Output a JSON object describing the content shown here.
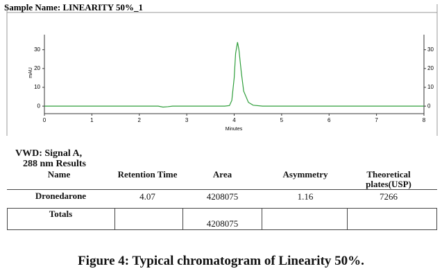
{
  "chart_data": {
    "type": "line",
    "title": "Sample Name: LINEARITY 50%_1",
    "x_label": "Minutes",
    "y_label": "mAU",
    "x": [
      0,
      0.5,
      1,
      1.5,
      2,
      2.4,
      2.5,
      2.6,
      2.7,
      3,
      3.5,
      3.8,
      3.9,
      3.95,
      4.0,
      4.03,
      4.07,
      4.1,
      4.15,
      4.2,
      4.3,
      4.4,
      4.6,
      5,
      6,
      7,
      8
    ],
    "series": [
      {
        "color": "#2e9e3a",
        "values": [
          0,
          0,
          0,
          0,
          0,
          0,
          -0.5,
          -0.3,
          0,
          0,
          0,
          0,
          0.3,
          3,
          15,
          28,
          34,
          30,
          18,
          8,
          2,
          0.5,
          0,
          0,
          0,
          0,
          0
        ]
      }
    ],
    "xlim": [
      0,
      8
    ],
    "xticks": [
      0,
      1,
      2,
      3,
      4,
      5,
      6,
      7,
      8
    ],
    "ylim": [
      -4,
      38
    ],
    "yticks": [
      0,
      10,
      20,
      30
    ]
  },
  "table": {
    "title": [
      "VWD: Signal A,",
      "288 nm Results"
    ],
    "header": [
      "Name",
      "Retention Time",
      "Area",
      "Asymmetry",
      "Theoretical plates(USP)"
    ],
    "rows": [
      [
        "Dronedarone",
        "4.07",
        "4208075",
        "1.16",
        "7266"
      ]
    ],
    "totals": {
      "label": "Totals",
      "area": "4208075"
    }
  },
  "caption": "Figure 4: Typical chromatogram of Linearity 50%."
}
